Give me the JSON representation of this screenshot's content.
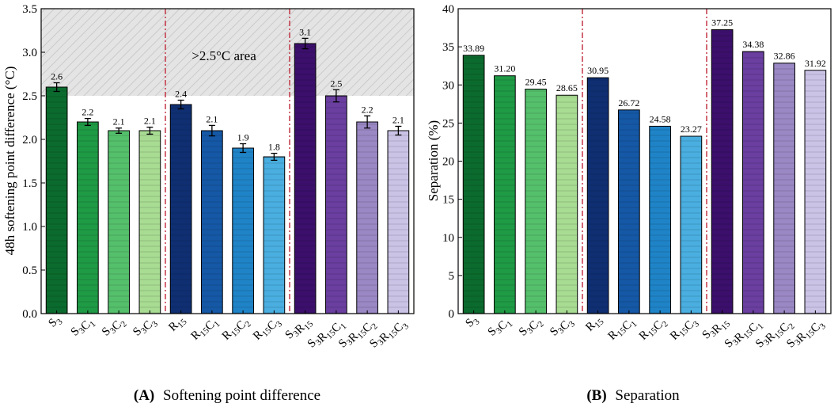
{
  "chart_data": [
    {
      "type": "bar",
      "panel_label": "(A)",
      "caption": "Softening point difference",
      "ylabel": "48h softening point difference (°C)",
      "ylim": [
        0,
        3.5
      ],
      "yticks": [
        "0.0",
        "0.5",
        "1.0",
        "1.5",
        "2.0",
        "2.5",
        "3.0",
        "3.5"
      ],
      "threshold": 2.5,
      "threshold_note": ">2.5°C area",
      "categories": [
        {
          "base": "S",
          "sub": "3"
        },
        {
          "base": "S",
          "sub": "3",
          "base2": "C",
          "sub2": "1"
        },
        {
          "base": "S",
          "sub": "3",
          "base2": "C",
          "sub2": "2"
        },
        {
          "base": "S",
          "sub": "3",
          "base2": "C",
          "sub2": "3"
        },
        {
          "base": "R",
          "sub": "15"
        },
        {
          "base": "R",
          "sub": "15",
          "base2": "C",
          "sub2": "1"
        },
        {
          "base": "R",
          "sub": "15",
          "base2": "C",
          "sub2": "2"
        },
        {
          "base": "R",
          "sub": "15",
          "base2": "C",
          "sub2": "3"
        },
        {
          "base": "S",
          "sub": "3",
          "base2": "R",
          "sub2": "15"
        },
        {
          "base": "S",
          "sub": "3",
          "base2": "R",
          "sub2": "15",
          "base3": "C",
          "sub3": "1"
        },
        {
          "base": "S",
          "sub": "3",
          "base2": "R",
          "sub2": "15",
          "base3": "C",
          "sub3": "2"
        },
        {
          "base": "S",
          "sub": "3",
          "base2": "R",
          "sub2": "15",
          "base3": "C",
          "sub3": "3"
        }
      ],
      "values": [
        2.6,
        2.2,
        2.1,
        2.1,
        2.4,
        2.1,
        1.9,
        1.8,
        3.1,
        2.5,
        2.2,
        2.1
      ],
      "labels": [
        "2.6",
        "2.2",
        "2.1",
        "2.1",
        "2.4",
        "2.1",
        "1.9",
        "1.8",
        "3.1",
        "2.5",
        "2.2",
        "2.1"
      ],
      "errors": [
        0.05,
        0.04,
        0.03,
        0.04,
        0.05,
        0.06,
        0.05,
        0.04,
        0.06,
        0.07,
        0.07,
        0.05
      ]
    },
    {
      "type": "bar",
      "panel_label": "(B)",
      "caption": "Separation",
      "ylabel": "Separation (%)",
      "ylim": [
        0,
        40
      ],
      "yticks": [
        "0",
        "5",
        "10",
        "15",
        "20",
        "25",
        "30",
        "35",
        "40"
      ],
      "categories": [
        {
          "base": "S",
          "sub": "3"
        },
        {
          "base": "S",
          "sub": "3",
          "base2": "C",
          "sub2": "1"
        },
        {
          "base": "S",
          "sub": "3",
          "base2": "C",
          "sub2": "2"
        },
        {
          "base": "S",
          "sub": "3",
          "base2": "C",
          "sub2": "3"
        },
        {
          "base": "R",
          "sub": "15"
        },
        {
          "base": "R",
          "sub": "15",
          "base2": "C",
          "sub2": "1"
        },
        {
          "base": "R",
          "sub": "15",
          "base2": "C",
          "sub2": "2"
        },
        {
          "base": "R",
          "sub": "15",
          "base2": "C",
          "sub2": "3"
        },
        {
          "base": "S",
          "sub": "3",
          "base2": "R",
          "sub2": "15"
        },
        {
          "base": "S",
          "sub": "3",
          "base2": "R",
          "sub2": "15",
          "base3": "C",
          "sub3": "1"
        },
        {
          "base": "S",
          "sub": "3",
          "base2": "R",
          "sub2": "15",
          "base3": "C",
          "sub3": "2"
        },
        {
          "base": "S",
          "sub": "3",
          "base2": "R",
          "sub2": "15",
          "base3": "C",
          "sub3": "3"
        }
      ],
      "values": [
        33.89,
        31.2,
        29.45,
        28.65,
        30.95,
        26.72,
        24.58,
        23.27,
        37.25,
        34.38,
        32.86,
        31.92
      ],
      "labels": [
        "33.89",
        "31.20",
        "29.45",
        "28.65",
        "30.95",
        "26.72",
        "24.58",
        "23.27",
        "37.25",
        "34.38",
        "32.86",
        "31.92"
      ]
    }
  ],
  "colors": {
    "bars": [
      "#0b6b2e",
      "#1f9a45",
      "#55c06c",
      "#a8dc93",
      "#0f2f72",
      "#1558a6",
      "#1f84c7",
      "#4aaee0",
      "#3b0f6b",
      "#6a3fa0",
      "#9a88c4",
      "#cbc3e6"
    ],
    "divider": "#c0283a",
    "shade": "#d9d9d9"
  }
}
